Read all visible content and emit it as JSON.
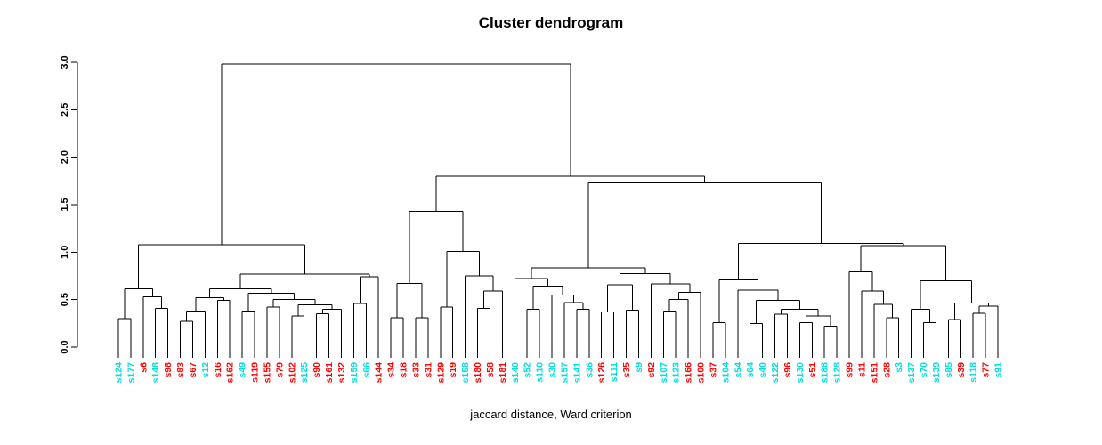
{
  "title": "Cluster dendrogram",
  "caption": "jaccard distance, Ward criterion",
  "palette": {
    "cyan": "#00dede",
    "red": "#ff0000",
    "line": "#000000"
  },
  "chart_data": {
    "type": "dendrogram",
    "title": "Cluster dendrogram",
    "xlabel": "jaccard distance, Ward criterion",
    "ylabel": "",
    "ylim": [
      0.0,
      3.0
    ],
    "yticks": [
      "0.0",
      "0.5",
      "1.0",
      "1.5",
      "2.0",
      "2.5",
      "3.0"
    ],
    "grid": false,
    "legend": "none",
    "leaves": [
      {
        "label": "s124",
        "color": "cyan"
      },
      {
        "label": "s177",
        "color": "cyan"
      },
      {
        "label": "s6",
        "color": "red"
      },
      {
        "label": "s148",
        "color": "cyan"
      },
      {
        "label": "s98",
        "color": "red"
      },
      {
        "label": "s83",
        "color": "red"
      },
      {
        "label": "s67",
        "color": "red"
      },
      {
        "label": "s12",
        "color": "cyan"
      },
      {
        "label": "s16",
        "color": "red"
      },
      {
        "label": "s162",
        "color": "red"
      },
      {
        "label": "s49",
        "color": "cyan"
      },
      {
        "label": "s119",
        "color": "red"
      },
      {
        "label": "s155",
        "color": "red"
      },
      {
        "label": "s79",
        "color": "red"
      },
      {
        "label": "s102",
        "color": "red"
      },
      {
        "label": "s125",
        "color": "cyan"
      },
      {
        "label": "s90",
        "color": "red"
      },
      {
        "label": "s161",
        "color": "red"
      },
      {
        "label": "s132",
        "color": "red"
      },
      {
        "label": "s159",
        "color": "cyan"
      },
      {
        "label": "s66",
        "color": "cyan"
      },
      {
        "label": "s144",
        "color": "red"
      },
      {
        "label": "s34",
        "color": "red"
      },
      {
        "label": "s18",
        "color": "red"
      },
      {
        "label": "s33",
        "color": "red"
      },
      {
        "label": "s31",
        "color": "red"
      },
      {
        "label": "s129",
        "color": "red"
      },
      {
        "label": "s19",
        "color": "red"
      },
      {
        "label": "s158",
        "color": "cyan"
      },
      {
        "label": "s180",
        "color": "red"
      },
      {
        "label": "s58",
        "color": "red"
      },
      {
        "label": "s181",
        "color": "red"
      },
      {
        "label": "s140",
        "color": "cyan"
      },
      {
        "label": "s52",
        "color": "cyan"
      },
      {
        "label": "s110",
        "color": "cyan"
      },
      {
        "label": "s30",
        "color": "cyan"
      },
      {
        "label": "s157",
        "color": "cyan"
      },
      {
        "label": "s141",
        "color": "cyan"
      },
      {
        "label": "s36",
        "color": "cyan"
      },
      {
        "label": "s126",
        "color": "red"
      },
      {
        "label": "s111",
        "color": "cyan"
      },
      {
        "label": "s35",
        "color": "red"
      },
      {
        "label": "s9",
        "color": "cyan"
      },
      {
        "label": "s92",
        "color": "red"
      },
      {
        "label": "s107",
        "color": "cyan"
      },
      {
        "label": "s123",
        "color": "cyan"
      },
      {
        "label": "s166",
        "color": "red"
      },
      {
        "label": "s100",
        "color": "red"
      },
      {
        "label": "s37",
        "color": "red"
      },
      {
        "label": "s104",
        "color": "cyan"
      },
      {
        "label": "s54",
        "color": "cyan"
      },
      {
        "label": "s64",
        "color": "cyan"
      },
      {
        "label": "s40",
        "color": "cyan"
      },
      {
        "label": "s122",
        "color": "cyan"
      },
      {
        "label": "s96",
        "color": "red"
      },
      {
        "label": "s130",
        "color": "cyan"
      },
      {
        "label": "s51",
        "color": "red"
      },
      {
        "label": "s188",
        "color": "cyan"
      },
      {
        "label": "s128",
        "color": "cyan"
      },
      {
        "label": "s99",
        "color": "red"
      },
      {
        "label": "s11",
        "color": "red"
      },
      {
        "label": "s151",
        "color": "red"
      },
      {
        "label": "s28",
        "color": "red"
      },
      {
        "label": "s3",
        "color": "cyan"
      },
      {
        "label": "s137",
        "color": "cyan"
      },
      {
        "label": "s70",
        "color": "cyan"
      },
      {
        "label": "s139",
        "color": "cyan"
      },
      {
        "label": "s85",
        "color": "cyan"
      },
      {
        "label": "s39",
        "color": "red"
      },
      {
        "label": "s118",
        "color": "cyan"
      },
      {
        "label": "s77",
        "color": "red"
      },
      {
        "label": "s91",
        "color": "cyan"
      }
    ],
    "tree": {
      "h": 2.98,
      "c": [
        {
          "h": 1.08,
          "c": [
            {
              "h": 0.615,
              "c": [
                {
                  "h": 0.3,
                  "c": [
                    0,
                    1
                  ]
                },
                {
                  "h": 0.53,
                  "c": [
                    2,
                    {
                      "h": 0.41,
                      "c": [
                        3,
                        4
                      ]
                    }
                  ]
                }
              ]
            },
            {
              "h": 0.77,
              "c": [
                {
                  "h": 0.615,
                  "c": [
                    {
                      "h": 0.52,
                      "c": [
                        {
                          "h": 0.38,
                          "c": [
                            {
                              "h": 0.27,
                              "c": [
                                5,
                                6
                              ]
                            },
                            7
                          ]
                        },
                        {
                          "h": 0.49,
                          "c": [
                            8,
                            9
                          ]
                        }
                      ]
                    },
                    {
                      "h": 0.565,
                      "c": [
                        {
                          "h": 0.38,
                          "c": [
                            10,
                            11
                          ]
                        },
                        {
                          "h": 0.5,
                          "c": [
                            {
                              "h": 0.42,
                              "c": [
                                12,
                                13
                              ]
                            },
                            {
                              "h": 0.445,
                              "c": [
                                {
                                  "h": 0.33,
                                  "c": [
                                    14,
                                    15
                                  ]
                                },
                                {
                                  "h": 0.4,
                                  "c": [
                                    {
                                      "h": 0.35,
                                      "c": [
                                        16,
                                        17
                                      ]
                                    },
                                    18
                                  ]
                                }
                              ]
                            }
                          ]
                        }
                      ]
                    }
                  ]
                },
                {
                  "h": 0.74,
                  "c": [
                    {
                      "h": 0.46,
                      "c": [
                        19,
                        20
                      ]
                    },
                    21
                  ]
                }
              ]
            }
          ]
        },
        {
          "h": 1.8,
          "c": [
            {
              "h": 1.43,
              "c": [
                {
                  "h": 0.67,
                  "c": [
                    {
                      "h": 0.31,
                      "c": [
                        22,
                        23
                      ]
                    },
                    {
                      "h": 0.31,
                      "c": [
                        24,
                        25
                      ]
                    }
                  ]
                },
                {
                  "h": 1.01,
                  "c": [
                    {
                      "h": 0.42,
                      "c": [
                        26,
                        27
                      ]
                    },
                    {
                      "h": 0.75,
                      "c": [
                        28,
                        {
                          "h": 0.59,
                          "c": [
                            {
                              "h": 0.41,
                              "c": [
                                29,
                                30
                              ]
                            },
                            31
                          ]
                        }
                      ]
                    }
                  ]
                }
              ]
            },
            {
              "h": 1.73,
              "c": [
                {
                  "h": 0.835,
                  "c": [
                    {
                      "h": 0.72,
                      "c": [
                        32,
                        {
                          "h": 0.64,
                          "c": [
                            {
                              "h": 0.4,
                              "c": [
                                33,
                                34
                              ]
                            },
                            {
                              "h": 0.55,
                              "c": [
                                35,
                                {
                                  "h": 0.47,
                                  "c": [
                                    36,
                                    {
                                      "h": 0.4,
                                      "c": [
                                        37,
                                        38
                                      ]
                                    }
                                  ]
                                }
                              ]
                            }
                          ]
                        }
                      ]
                    },
                    {
                      "h": 0.775,
                      "c": [
                        {
                          "h": 0.655,
                          "c": [
                            {
                              "h": 0.37,
                              "c": [
                                39,
                                40
                              ]
                            },
                            {
                              "h": 0.39,
                              "c": [
                                41,
                                42
                              ]
                            }
                          ]
                        },
                        {
                          "h": 0.665,
                          "c": [
                            43,
                            {
                              "h": 0.575,
                              "c": [
                                {
                                  "h": 0.5,
                                  "c": [
                                    {
                                      "h": 0.38,
                                      "c": [
                                        44,
                                        45
                                      ]
                                    },
                                    46
                                  ]
                                },
                                47
                              ]
                            }
                          ]
                        }
                      ]
                    }
                  ]
                },
                {
                  "h": 1.09,
                  "c": [
                    {
                      "h": 0.71,
                      "c": [
                        {
                          "h": 0.26,
                          "c": [
                            48,
                            49
                          ]
                        },
                        {
                          "h": 0.6,
                          "c": [
                            50,
                            {
                              "h": 0.49,
                              "c": [
                                {
                                  "h": 0.25,
                                  "c": [
                                    51,
                                    52
                                  ]
                                },
                                {
                                  "h": 0.4,
                                  "c": [
                                    {
                                      "h": 0.345,
                                      "c": [
                                        53,
                                        54
                                      ]
                                    },
                                    {
                                      "h": 0.33,
                                      "c": [
                                        {
                                          "h": 0.26,
                                          "c": [
                                            55,
                                            56
                                          ]
                                        },
                                        {
                                          "h": 0.22,
                                          "c": [
                                            57,
                                            58
                                          ]
                                        }
                                      ]
                                    }
                                  ]
                                }
                              ]
                            }
                          ]
                        }
                      ]
                    },
                    {
                      "h": 1.07,
                      "c": [
                        {
                          "h": 0.79,
                          "c": [
                            59,
                            {
                              "h": 0.59,
                              "c": [
                                60,
                                {
                                  "h": 0.45,
                                  "c": [
                                    61,
                                    {
                                      "h": 0.31,
                                      "c": [
                                        62,
                                        63
                                      ]
                                    }
                                  ]
                                }
                              ]
                            }
                          ]
                        },
                        {
                          "h": 0.7,
                          "c": [
                            {
                              "h": 0.4,
                              "c": [
                                64,
                                {
                                  "h": 0.26,
                                  "c": [
                                    65,
                                    66
                                  ]
                                }
                              ]
                            },
                            {
                              "h": 0.465,
                              "c": [
                                {
                                  "h": 0.29,
                                  "c": [
                                    67,
                                    68
                                  ]
                                },
                                {
                                  "h": 0.43,
                                  "c": [
                                    {
                                      "h": 0.355,
                                      "c": [
                                        69,
                                        70
                                      ]
                                    },
                                    71
                                  ]
                                }
                              ]
                            }
                          ]
                        }
                      ]
                    }
                  ]
                }
              ]
            }
          ]
        }
      ]
    }
  }
}
